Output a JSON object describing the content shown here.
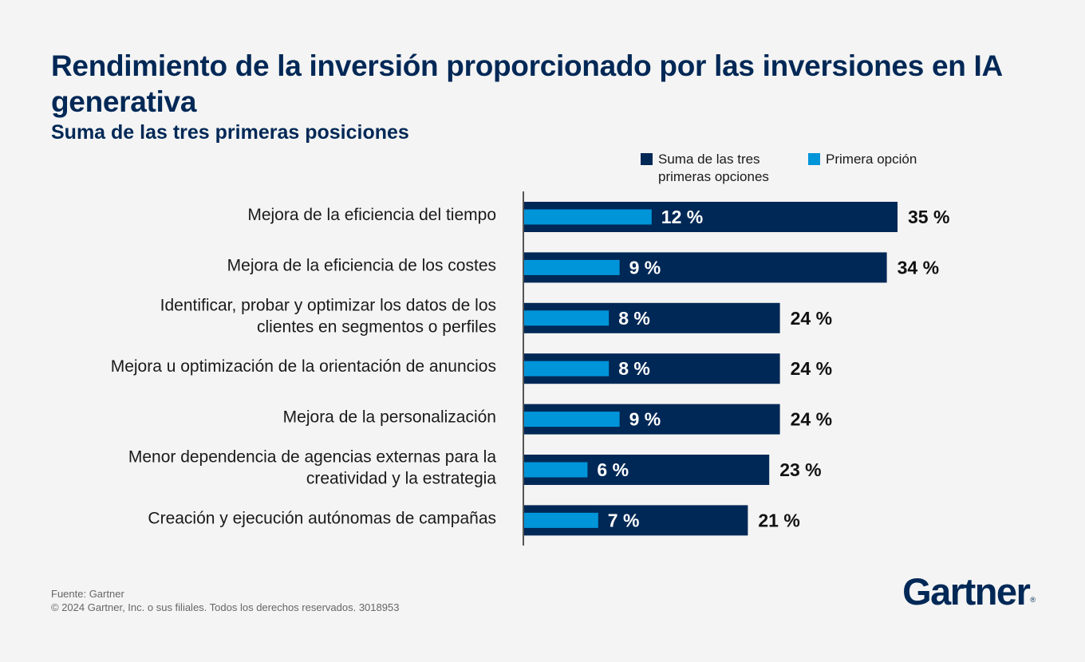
{
  "title": "Rendimiento de la inversión proporcionado por las inversiones en IA generativa",
  "subtitle": "Suma de las tres primeras posiciones",
  "colors": {
    "total": "#002856",
    "first": "#0095d9",
    "text": "#1a1a1a",
    "label_in_bar": "#ffffff"
  },
  "chart_data": {
    "type": "bar",
    "orientation": "horizontal",
    "categories": [
      "Mejora de la eficiencia del tiempo",
      "Mejora de la eficiencia de los costes",
      "Identificar, probar y optimizar los datos de los clientes en segmentos o perfiles",
      "Mejora u optimización de la orientación de anuncios",
      "Mejora de la personalización",
      "Menor dependencia de agencias externas para la creatividad y la estrategia",
      "Creación y ejecución autónomas de campañas"
    ],
    "category_lines": [
      [
        "Mejora de la eficiencia del tiempo"
      ],
      [
        "Mejora de la eficiencia de los costes"
      ],
      [
        "Identificar, probar y optimizar los datos de los",
        "clientes en segmentos o perfiles"
      ],
      [
        "Mejora u optimización de la orientación de anuncios"
      ],
      [
        "Mejora de la personalización"
      ],
      [
        "Menor dependencia de agencias externas para la",
        "creatividad y la estrategia"
      ],
      [
        "Creación y ejecución autónomas de campañas"
      ]
    ],
    "series": [
      {
        "name": "Suma de las tres primeras opciones",
        "values": [
          35,
          34,
          24,
          24,
          24,
          23,
          21
        ],
        "labels": [
          "35 %",
          "34 %",
          "24 %",
          "24 %",
          "24 %",
          "23 %",
          "21 %"
        ]
      },
      {
        "name": "Primera opción",
        "values": [
          12,
          9,
          8,
          8,
          9,
          6,
          7
        ],
        "labels": [
          "12 %",
          "9 %",
          "8 %",
          "8 %",
          "9 %",
          "6 %",
          "7 %"
        ]
      }
    ],
    "unit": "%",
    "legend_position": "top-right",
    "grid": false
  },
  "legend": {
    "total": "Suma de las tres primeras opciones",
    "first": "Primera opción"
  },
  "footer": {
    "source": "Fuente: Gartner",
    "copyright": "© 2024 Gartner, Inc. o sus filiales. Todos los derechos reservados. 3018953"
  },
  "brand": "Gartner"
}
